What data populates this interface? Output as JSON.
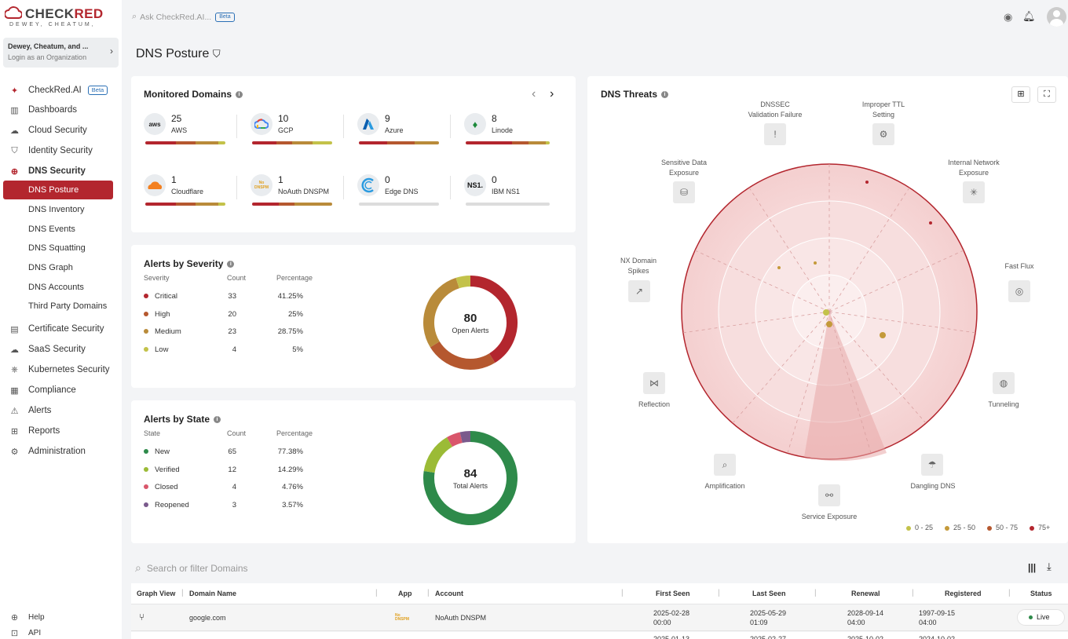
{
  "brand": {
    "name_left": "CHECK",
    "name_right": "RED",
    "tagline": "DEWEY, CHEATUM,"
  },
  "org": {
    "name": "Dewey, Cheatum, and ...",
    "sub": "Login as an Organization"
  },
  "nav": [
    {
      "label": "CheckRed.AI",
      "icon": "ai-icon",
      "beta": "Beta"
    },
    {
      "label": "Dashboards",
      "icon": "dashboard-icon"
    },
    {
      "label": "Cloud Security",
      "icon": "cloud-icon"
    },
    {
      "label": "Identity Security",
      "icon": "shield-icon"
    },
    {
      "label": "DNS Security",
      "icon": "globe-icon"
    },
    {
      "label": "Certificate Security",
      "icon": "certificate-icon"
    },
    {
      "label": "SaaS Security",
      "icon": "saas-icon"
    },
    {
      "label": "Kubernetes Security",
      "icon": "kubernetes-icon"
    },
    {
      "label": "Compliance",
      "icon": "clipboard-icon"
    },
    {
      "label": "Alerts",
      "icon": "warning-icon"
    },
    {
      "label": "Reports",
      "icon": "grid-icon"
    },
    {
      "label": "Administration",
      "icon": "gear-icon"
    }
  ],
  "dns_sub": [
    "DNS Posture",
    "DNS Inventory",
    "DNS Events",
    "DNS Squatting",
    "DNS Graph",
    "DNS Accounts",
    "Third Party Domains"
  ],
  "footer_nav": [
    "Help",
    "API"
  ],
  "search": {
    "placeholder": "Ask CheckRed.AI...",
    "beta": "Beta"
  },
  "page_title": "DNS Posture",
  "monitored": {
    "title": "Monitored Domains",
    "providers": [
      {
        "count": "25",
        "name": "AWS",
        "logo": "aws"
      },
      {
        "count": "10",
        "name": "GCP",
        "logo": "G"
      },
      {
        "count": "9",
        "name": "Azure",
        "logo": "A"
      },
      {
        "count": "8",
        "name": "Linode",
        "logo": "L"
      },
      {
        "count": "1",
        "name": "Cloudflare",
        "logo": "cf"
      },
      {
        "count": "1",
        "name": "NoAuth DNSPM",
        "logo": "NoAuth"
      },
      {
        "count": "0",
        "name": "Edge DNS",
        "logo": "E"
      },
      {
        "count": "0",
        "name": "IBM NS1",
        "logo": "NS1."
      }
    ]
  },
  "severity": {
    "title": "Alerts by Severity",
    "headers": [
      "Severity",
      "Count",
      "Percentage"
    ],
    "rows": [
      {
        "label": "Critical",
        "count": "33",
        "pct": "41.25%",
        "color": "#b3262e"
      },
      {
        "label": "High",
        "count": "20",
        "pct": "25%",
        "color": "#b5582f"
      },
      {
        "label": "Medium",
        "count": "23",
        "pct": "28.75%",
        "color": "#b98b3a"
      },
      {
        "label": "Low",
        "count": "4",
        "pct": "5%",
        "color": "#c3c24a"
      }
    ],
    "total": "80",
    "total_label": "Open Alerts"
  },
  "state": {
    "title": "Alerts by State",
    "headers": [
      "State",
      "Count",
      "Percentage"
    ],
    "rows": [
      {
        "label": "New",
        "count": "65",
        "pct": "77.38%",
        "color": "#2e8a4a"
      },
      {
        "label": "Verified",
        "count": "12",
        "pct": "14.29%",
        "color": "#9bbb36"
      },
      {
        "label": "Closed",
        "count": "4",
        "pct": "4.76%",
        "color": "#d9566b"
      },
      {
        "label": "Reopened",
        "count": "3",
        "pct": "3.57%",
        "color": "#7a5a8c"
      }
    ],
    "total": "84",
    "total_label": "Total Alerts"
  },
  "threats": {
    "title": "DNS Threats",
    "labels": {
      "dnssec": "DNSSEC\nValidation Failure",
      "ttl": "Improper TTL\nSetting",
      "sensitive": "Sensitive Data\nExposure",
      "internal": "Internal Network\nExposure",
      "nx": "NX Domain\nSpikes",
      "fastflux": "Fast Flux",
      "reflection": "Reflection",
      "tunneling": "Tunneling",
      "amplification": "Amplification",
      "dangling": "Dangling DNS",
      "service": "Service Exposure"
    },
    "legend": [
      {
        "label": "0 - 25",
        "color": "#c3c24a"
      },
      {
        "label": "25 - 50",
        "color": "#c49a3a"
      },
      {
        "label": "50 - 75",
        "color": "#b5582f"
      },
      {
        "label": "75+",
        "color": "#b3262e"
      }
    ]
  },
  "table": {
    "search_placeholder": "Search or filter Domains",
    "headers": [
      "Graph View",
      "Domain Name",
      "App",
      "Account",
      "First Seen",
      "Last Seen",
      "Renewal",
      "Registered",
      "Status"
    ],
    "rows": [
      {
        "domain": "google.com",
        "app": "NoAuth DNSPM",
        "account": "NoAuth DNSPM",
        "first_date": "2025-02-28",
        "first_time": "00:00",
        "last_date": "2025-05-29",
        "last_time": "01:09",
        "renew_date": "2028-09-14",
        "renew_time": "04:00",
        "reg_date": "1997-09-15",
        "reg_time": "04:00",
        "status": "Live"
      },
      {
        "first_date": "2025-01-13",
        "last_date": "2025-02-27",
        "renew_date": "2025-10-02",
        "reg_date": "2024-10-02"
      }
    ]
  }
}
